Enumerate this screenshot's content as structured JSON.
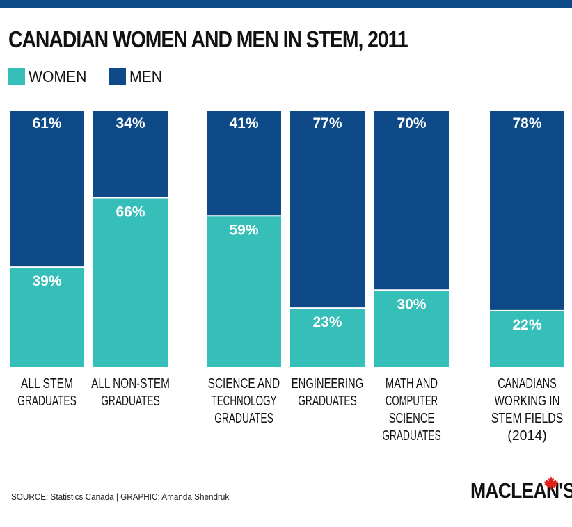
{
  "colors": {
    "women": "#35bfb8",
    "men": "#0d4a87",
    "accent_red": "#e0201b"
  },
  "footer": {
    "source": "SOURCE: Statistics Canada  |  GRAPHIC: Amanda Shendruk",
    "logo": "MACLEAN'S",
    "logo_icon": "maple-leaf-icon"
  },
  "chart_data": {
    "type": "bar",
    "stacked": true,
    "percent_stacked": true,
    "title": "CANADIAN WOMEN AND MEN IN STEM, 2011",
    "xlabel": "",
    "ylabel": "",
    "ylim": [
      0,
      100
    ],
    "legend_position": "top-left",
    "legend": [
      "WOMEN",
      "MEN"
    ],
    "categories": [
      [
        "ALL STEM",
        "GRADUATES"
      ],
      [
        "ALL NON-STEM",
        "GRADUATES"
      ],
      [
        "SCIENCE AND",
        "TECHNOLOGY",
        "GRADUATES"
      ],
      [
        "ENGINEERING",
        "GRADUATES"
      ],
      [
        "MATH AND",
        "COMPUTER",
        "SCIENCE",
        "GRADUATES"
      ],
      [
        "CANADIANS",
        "WORKING IN",
        "STEM FIELDS",
        "(2014)"
      ]
    ],
    "series": [
      {
        "name": "WOMEN",
        "values": [
          39,
          66,
          59,
          23,
          30,
          22
        ],
        "labels": [
          "39%",
          "66%",
          "59%",
          "23%",
          "30%",
          "22%"
        ]
      },
      {
        "name": "MEN",
        "values": [
          61,
          34,
          41,
          77,
          70,
          78
        ],
        "labels": [
          "61%",
          "34%",
          "41%",
          "77%",
          "70%",
          "78%"
        ]
      }
    ]
  }
}
